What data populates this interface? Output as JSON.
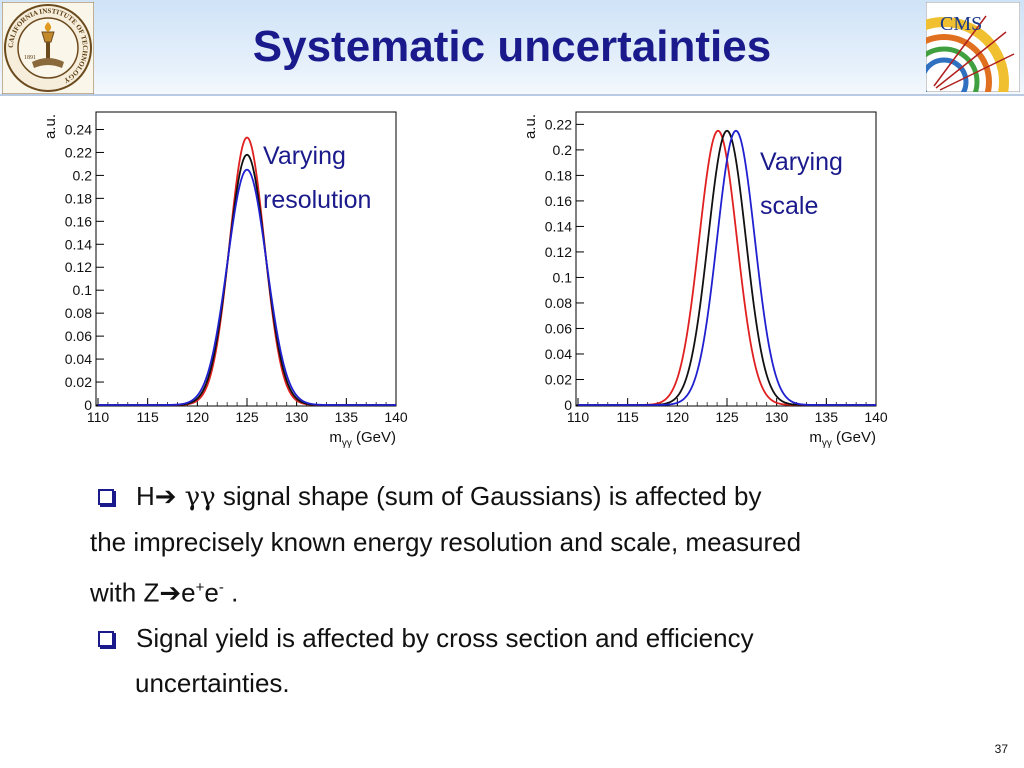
{
  "slide": {
    "title": "Systematic uncertainties",
    "page_number": "37",
    "logo_left_text": "CALIFORNIA INSTITUTE OF TECHNOLOGY",
    "logo_left_year": "1891",
    "logo_right_text": "CMS"
  },
  "bullets": {
    "b1_prefix": "H",
    "b1_arrow": "➔",
    "b1_gg": "γγ",
    "b1_rest": " signal shape (sum of Gaussians) is affected by",
    "b1_line2": "the imprecisely known energy resolution and scale, measured",
    "b1_line3_a": "with Z",
    "b1_line3_arrow": "➔",
    "b1_line3_e1": "e",
    "b1_line3_sup1": "+",
    "b1_line3_e2": "e",
    "b1_line3_sup2": "-",
    "b1_line3_end": " .",
    "b2_line1": "Signal yield is affected by cross section and efficiency",
    "b2_line2": "uncertainties."
  },
  "chart_data": [
    {
      "type": "line",
      "ylabel": "a.u.",
      "xlabel": "m",
      "xlabel_sub": "γγ",
      "xlabel_unit": "(GeV)",
      "annotation": [
        "Varying",
        "resolution"
      ],
      "xlim": [
        110,
        140
      ],
      "ylim": [
        0,
        0.25
      ],
      "xticks": [
        110,
        115,
        120,
        125,
        130,
        135,
        140
      ],
      "yticks": [
        0,
        0.02,
        0.04,
        0.06,
        0.08,
        0.1,
        0.12,
        0.14,
        0.16,
        0.18,
        0.2,
        0.22,
        0.24
      ],
      "series": [
        {
          "color": "#e02020",
          "mean": 125.0,
          "peak": 0.233,
          "sigma": 1.75
        },
        {
          "color": "#111111",
          "mean": 125.0,
          "peak": 0.218,
          "sigma": 1.85
        },
        {
          "color": "#2020d0",
          "mean": 125.0,
          "peak": 0.205,
          "sigma": 1.97
        }
      ]
    },
    {
      "type": "line",
      "ylabel": "a.u.",
      "xlabel": "m",
      "xlabel_sub": "γγ",
      "xlabel_unit": "(GeV)",
      "annotation": [
        "Varying",
        "scale"
      ],
      "xlim": [
        110,
        140
      ],
      "ylim": [
        0,
        0.225
      ],
      "xticks": [
        110,
        115,
        120,
        125,
        130,
        135,
        140
      ],
      "yticks": [
        0,
        0.02,
        0.04,
        0.06,
        0.08,
        0.1,
        0.12,
        0.14,
        0.16,
        0.18,
        0.2,
        0.22
      ],
      "series": [
        {
          "color": "#e02020",
          "mean": 124.1,
          "peak": 0.215,
          "sigma": 1.9
        },
        {
          "color": "#111111",
          "mean": 125.0,
          "peak": 0.215,
          "sigma": 1.9
        },
        {
          "color": "#2020d0",
          "mean": 125.9,
          "peak": 0.215,
          "sigma": 1.9
        }
      ]
    }
  ],
  "colors": {
    "title": "#1a1a8c",
    "annotation": "#1a1a8c"
  }
}
